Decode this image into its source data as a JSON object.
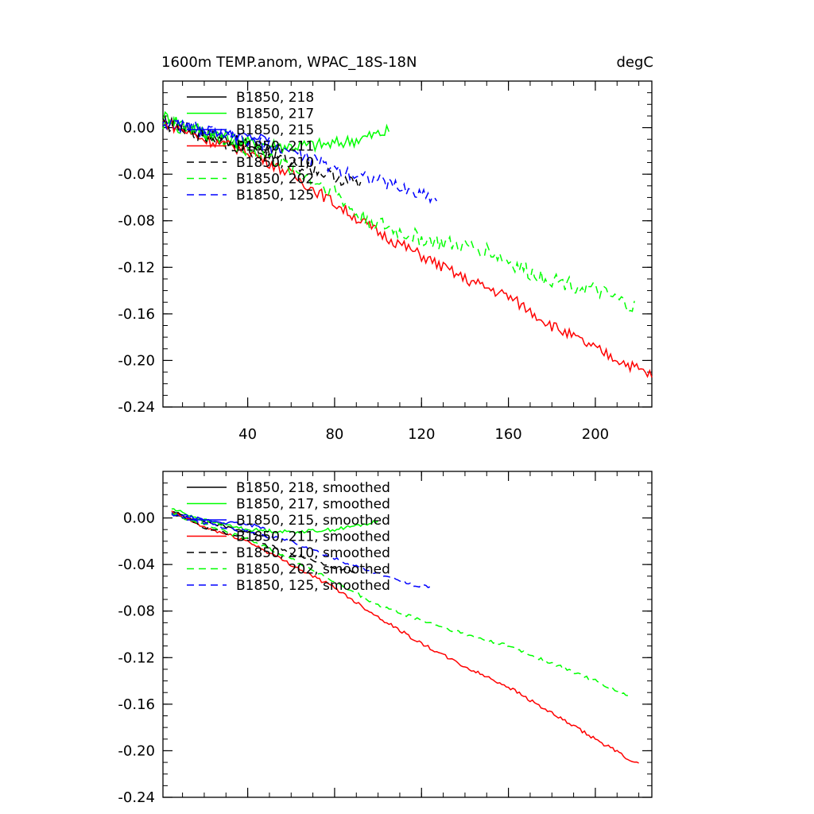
{
  "figure": {
    "title_left": "1600m TEMP.anom, WPAC_18S-18N",
    "title_right": "degC"
  },
  "chart_data": [
    {
      "type": "line",
      "panel": "top",
      "xlim": [
        1,
        226
      ],
      "ylim": [
        -0.24,
        0.04
      ],
      "xticks": [
        40,
        80,
        120,
        160,
        200
      ],
      "xtick_labels": [
        "40",
        "80",
        "120",
        "160",
        "200"
      ],
      "yticks": [
        0.0,
        -0.04,
        -0.08,
        -0.12,
        -0.16,
        -0.2,
        -0.24
      ],
      "ytick_labels": [
        "0.00",
        "-0.04",
        "-0.08",
        "-0.12",
        "-0.16",
        "-0.20",
        "-0.24"
      ],
      "grid": false,
      "legend_position": "top-left",
      "series": [
        {
          "name": "B1850, 218",
          "color": "#000000",
          "dash": "solid",
          "noise": 0.006,
          "points": [
            [
              1,
              0.005
            ],
            [
              20,
              -0.005
            ],
            [
              40,
              -0.015
            ],
            [
              55,
              -0.02
            ]
          ]
        },
        {
          "name": "B1850, 217",
          "color": "#00ff00",
          "dash": "solid",
          "noise": 0.006,
          "points": [
            [
              1,
              0.01
            ],
            [
              20,
              -0.003
            ],
            [
              40,
              -0.013
            ],
            [
              60,
              -0.016
            ],
            [
              80,
              -0.014
            ],
            [
              95,
              -0.008
            ],
            [
              105,
              -0.003
            ]
          ]
        },
        {
          "name": "B1850, 215",
          "color": "#0000ff",
          "dash": "solid",
          "noise": 0.004,
          "points": [
            [
              1,
              0.005
            ],
            [
              20,
              -0.003
            ],
            [
              40,
              -0.008
            ],
            [
              50,
              -0.01
            ]
          ]
        },
        {
          "name": "B1850, 211",
          "color": "#ff0000",
          "dash": "solid",
          "noise": 0.005,
          "points": [
            [
              1,
              0.005
            ],
            [
              20,
              -0.01
            ],
            [
              40,
              -0.02
            ],
            [
              60,
              -0.04
            ],
            [
              80,
              -0.065
            ],
            [
              100,
              -0.09
            ],
            [
              120,
              -0.11
            ],
            [
              140,
              -0.13
            ],
            [
              160,
              -0.145
            ],
            [
              180,
              -0.17
            ],
            [
              200,
              -0.19
            ],
            [
              226,
              -0.213
            ]
          ]
        },
        {
          "name": "B1850, 210",
          "color": "#000000",
          "dash": "dashed",
          "noise": 0.006,
          "points": [
            [
              1,
              0.004
            ],
            [
              20,
              -0.008
            ],
            [
              40,
              -0.018
            ],
            [
              60,
              -0.03
            ],
            [
              80,
              -0.042
            ],
            [
              92,
              -0.05
            ]
          ]
        },
        {
          "name": "B1850, 202",
          "color": "#00ff00",
          "dash": "dashed",
          "noise": 0.007,
          "points": [
            [
              1,
              0.005
            ],
            [
              20,
              -0.006
            ],
            [
              40,
              -0.018
            ],
            [
              60,
              -0.035
            ],
            [
              80,
              -0.055
            ],
            [
              90,
              -0.075
            ],
            [
              110,
              -0.09
            ],
            [
              130,
              -0.1
            ],
            [
              150,
              -0.105
            ],
            [
              170,
              -0.125
            ],
            [
              190,
              -0.135
            ],
            [
              200,
              -0.14
            ],
            [
              218,
              -0.155
            ]
          ]
        },
        {
          "name": "B1850, 125",
          "color": "#0000ff",
          "dash": "dashed",
          "noise": 0.006,
          "points": [
            [
              1,
              0.004
            ],
            [
              20,
              -0.002
            ],
            [
              40,
              -0.012
            ],
            [
              60,
              -0.02
            ],
            [
              80,
              -0.035
            ],
            [
              100,
              -0.045
            ],
            [
              115,
              -0.055
            ],
            [
              127,
              -0.06
            ]
          ]
        }
      ]
    },
    {
      "type": "line",
      "panel": "bottom",
      "xlim": [
        1,
        226
      ],
      "ylim": [
        -0.24,
        0.04
      ],
      "xticks": [
        40,
        80,
        120,
        160,
        200
      ],
      "xtick_labels": [
        "",
        "",
        "",
        "",
        ""
      ],
      "yticks": [
        0.0,
        -0.04,
        -0.08,
        -0.12,
        -0.16,
        -0.2,
        -0.24
      ],
      "ytick_labels": [
        "0.00",
        "-0.04",
        "-0.08",
        "-0.12",
        "-0.16",
        "-0.20",
        "-0.24"
      ],
      "grid": false,
      "legend_position": "top-left",
      "series": [
        {
          "name": "B1850, 218, smoothed",
          "color": "#000000",
          "dash": "solid",
          "noise": 0.0015,
          "points": [
            [
              5,
              0.005
            ],
            [
              20,
              -0.003
            ],
            [
              40,
              -0.012
            ],
            [
              50,
              -0.016
            ]
          ]
        },
        {
          "name": "B1850, 217, smoothed",
          "color": "#00ff00",
          "dash": "solid",
          "noise": 0.0015,
          "points": [
            [
              5,
              0.008
            ],
            [
              20,
              -0.002
            ],
            [
              40,
              -0.01
            ],
            [
              60,
              -0.012
            ],
            [
              80,
              -0.01
            ],
            [
              95,
              -0.005
            ],
            [
              100,
              -0.003
            ]
          ]
        },
        {
          "name": "B1850, 215, smoothed",
          "color": "#0000ff",
          "dash": "solid",
          "noise": 0.0015,
          "points": [
            [
              5,
              0.004
            ],
            [
              20,
              -0.002
            ],
            [
              40,
              -0.006
            ],
            [
              48,
              -0.008
            ]
          ]
        },
        {
          "name": "B1850, 211, smoothed",
          "color": "#ff0000",
          "dash": "solid",
          "noise": 0.0015,
          "points": [
            [
              5,
              0.005
            ],
            [
              20,
              -0.008
            ],
            [
              40,
              -0.02
            ],
            [
              60,
              -0.04
            ],
            [
              80,
              -0.06
            ],
            [
              100,
              -0.085
            ],
            [
              120,
              -0.108
            ],
            [
              140,
              -0.128
            ],
            [
              160,
              -0.145
            ],
            [
              180,
              -0.168
            ],
            [
              200,
              -0.19
            ],
            [
              220,
              -0.212
            ]
          ]
        },
        {
          "name": "B1850, 210, smoothed",
          "color": "#000000",
          "dash": "dashed",
          "noise": 0.0015,
          "points": [
            [
              5,
              0.004
            ],
            [
              20,
              -0.008
            ],
            [
              40,
              -0.018
            ],
            [
              60,
              -0.03
            ],
            [
              80,
              -0.042
            ],
            [
              90,
              -0.048
            ]
          ]
        },
        {
          "name": "B1850, 202, smoothed",
          "color": "#00ff00",
          "dash": "dashed",
          "noise": 0.0015,
          "points": [
            [
              5,
              0.004
            ],
            [
              20,
              -0.006
            ],
            [
              40,
              -0.018
            ],
            [
              60,
              -0.035
            ],
            [
              80,
              -0.055
            ],
            [
              100,
              -0.075
            ],
            [
              120,
              -0.088
            ],
            [
              140,
              -0.1
            ],
            [
              160,
              -0.11
            ],
            [
              180,
              -0.125
            ],
            [
              200,
              -0.14
            ],
            [
              215,
              -0.153
            ]
          ]
        },
        {
          "name": "B1850, 125, smoothed",
          "color": "#0000ff",
          "dash": "dashed",
          "noise": 0.0015,
          "points": [
            [
              5,
              0.003
            ],
            [
              20,
              -0.004
            ],
            [
              40,
              -0.012
            ],
            [
              60,
              -0.02
            ],
            [
              80,
              -0.035
            ],
            [
              100,
              -0.048
            ],
            [
              115,
              -0.057
            ],
            [
              124,
              -0.059
            ]
          ]
        }
      ]
    }
  ]
}
